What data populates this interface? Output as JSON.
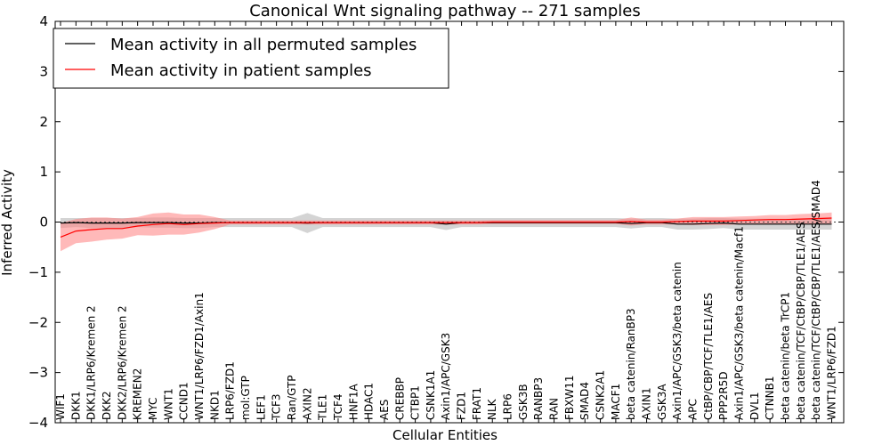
{
  "chart_data": {
    "type": "line",
    "title": "Canonical Wnt signaling pathway -- 271 samples",
    "xlabel": "Cellular Entities",
    "ylabel": "Inferred Activity",
    "ylim": [
      -4,
      4
    ],
    "yticks": [
      -4,
      -3,
      -2,
      -1,
      0,
      1,
      2,
      3,
      4
    ],
    "ytick_labels": [
      "−4",
      "−3",
      "−2",
      "−1",
      "0",
      "1",
      "2",
      "3",
      "4"
    ],
    "grid": false,
    "legend_position": "top-left",
    "colors": {
      "permuted": "#000000",
      "patient": "#ff0000",
      "permuted_band": "#b0b0b0",
      "patient_band": "#ff8080"
    },
    "categories": [
      "WIF1",
      "DKK1",
      "DKK1/LRP6/Kremen 2",
      "DKK2",
      "DKK2/LRP6/Kremen 2",
      "KREMEN2",
      "MYC",
      "WNT1",
      "CCND1",
      "WNT1/LRP6/FZD1/Axin1",
      "NKD1",
      "LRP6/FZD1",
      "mol:GTP",
      "LEF1",
      "TCF3",
      "Ran/GTP",
      "AXIN2",
      "TLE1",
      "TCF4",
      "HNF1A",
      "HDAC1",
      "AES",
      "CREBBP",
      "CTBP1",
      "CSNK1A1",
      "Axin1/APC/GSK3",
      "FZD1",
      "FRAT1",
      "NLK",
      "LRP6",
      "GSK3B",
      "RANBP3",
      "RAN",
      "FBXW11",
      "SMAD4",
      "CSNK2A1",
      "MACF1",
      "beta catenin/RanBP3",
      "AXIN1",
      "GSK3A",
      "Axin1/APC/GSK3/beta catenin",
      "APC",
      "CtBP/CBP/TCF/TLE1/AES",
      "PPP2R5D",
      "Axin1/APC/GSK3/beta catenin/Macf1",
      "DVL1",
      "CTNNB1",
      "beta catenin/beta TrCP1",
      "beta catenin/TCF/CtBP/CBP/TLE1/AES",
      "beta catenin/TCF/CtBP/CBP/TLE1/AES/SMAD4",
      "WNT1/LRP6/FZD1"
    ],
    "series": [
      {
        "name": "Mean activity in all permuted samples",
        "values": [
          -0.02,
          -0.01,
          -0.02,
          -0.02,
          -0.02,
          -0.01,
          -0.01,
          -0.01,
          -0.02,
          -0.02,
          -0.01,
          -0.01,
          -0.01,
          -0.01,
          -0.01,
          -0.01,
          -0.02,
          -0.01,
          -0.01,
          -0.01,
          -0.01,
          -0.01,
          -0.01,
          -0.01,
          -0.01,
          -0.04,
          -0.01,
          -0.01,
          -0.01,
          -0.01,
          -0.01,
          -0.01,
          -0.01,
          -0.01,
          -0.01,
          -0.01,
          -0.01,
          -0.03,
          -0.01,
          -0.01,
          -0.04,
          -0.04,
          -0.03,
          -0.02,
          -0.04,
          -0.04,
          -0.04,
          -0.04,
          -0.04,
          -0.04,
          -0.04
        ],
        "band": [
          0.1,
          0.09,
          0.1,
          0.1,
          0.1,
          0.09,
          0.1,
          0.1,
          0.1,
          0.1,
          0.09,
          0.09,
          0.09,
          0.09,
          0.09,
          0.09,
          0.2,
          0.09,
          0.09,
          0.09,
          0.09,
          0.09,
          0.09,
          0.09,
          0.09,
          0.12,
          0.09,
          0.09,
          0.09,
          0.09,
          0.09,
          0.09,
          0.09,
          0.09,
          0.09,
          0.09,
          0.09,
          0.1,
          0.09,
          0.09,
          0.11,
          0.11,
          0.11,
          0.1,
          0.11,
          0.11,
          0.11,
          0.11,
          0.11,
          0.11,
          0.11
        ]
      },
      {
        "name": "Mean activity in patient samples",
        "values": [
          -0.3,
          -0.18,
          -0.15,
          -0.13,
          -0.13,
          -0.08,
          -0.05,
          -0.03,
          -0.05,
          -0.03,
          -0.02,
          -0.01,
          -0.01,
          -0.01,
          -0.01,
          -0.01,
          -0.01,
          -0.01,
          -0.01,
          -0.01,
          -0.01,
          -0.01,
          -0.01,
          -0.01,
          -0.01,
          -0.01,
          -0.01,
          -0.01,
          0.0,
          0.0,
          0.0,
          0.0,
          0.0,
          0.0,
          0.0,
          0.0,
          0.0,
          0.01,
          0.0,
          0.0,
          0.01,
          0.02,
          0.02,
          0.02,
          0.03,
          0.04,
          0.05,
          0.05,
          0.06,
          0.07,
          0.08
        ],
        "band": [
          0.28,
          0.24,
          0.24,
          0.22,
          0.2,
          0.18,
          0.22,
          0.22,
          0.2,
          0.18,
          0.12,
          0.04,
          0.04,
          0.04,
          0.04,
          0.04,
          0.04,
          0.04,
          0.04,
          0.04,
          0.04,
          0.04,
          0.04,
          0.04,
          0.04,
          0.04,
          0.04,
          0.04,
          0.04,
          0.04,
          0.04,
          0.04,
          0.04,
          0.04,
          0.04,
          0.04,
          0.04,
          0.08,
          0.05,
          0.05,
          0.06,
          0.08,
          0.08,
          0.08,
          0.08,
          0.08,
          0.09,
          0.09,
          0.1,
          0.1,
          0.11
        ]
      }
    ]
  }
}
